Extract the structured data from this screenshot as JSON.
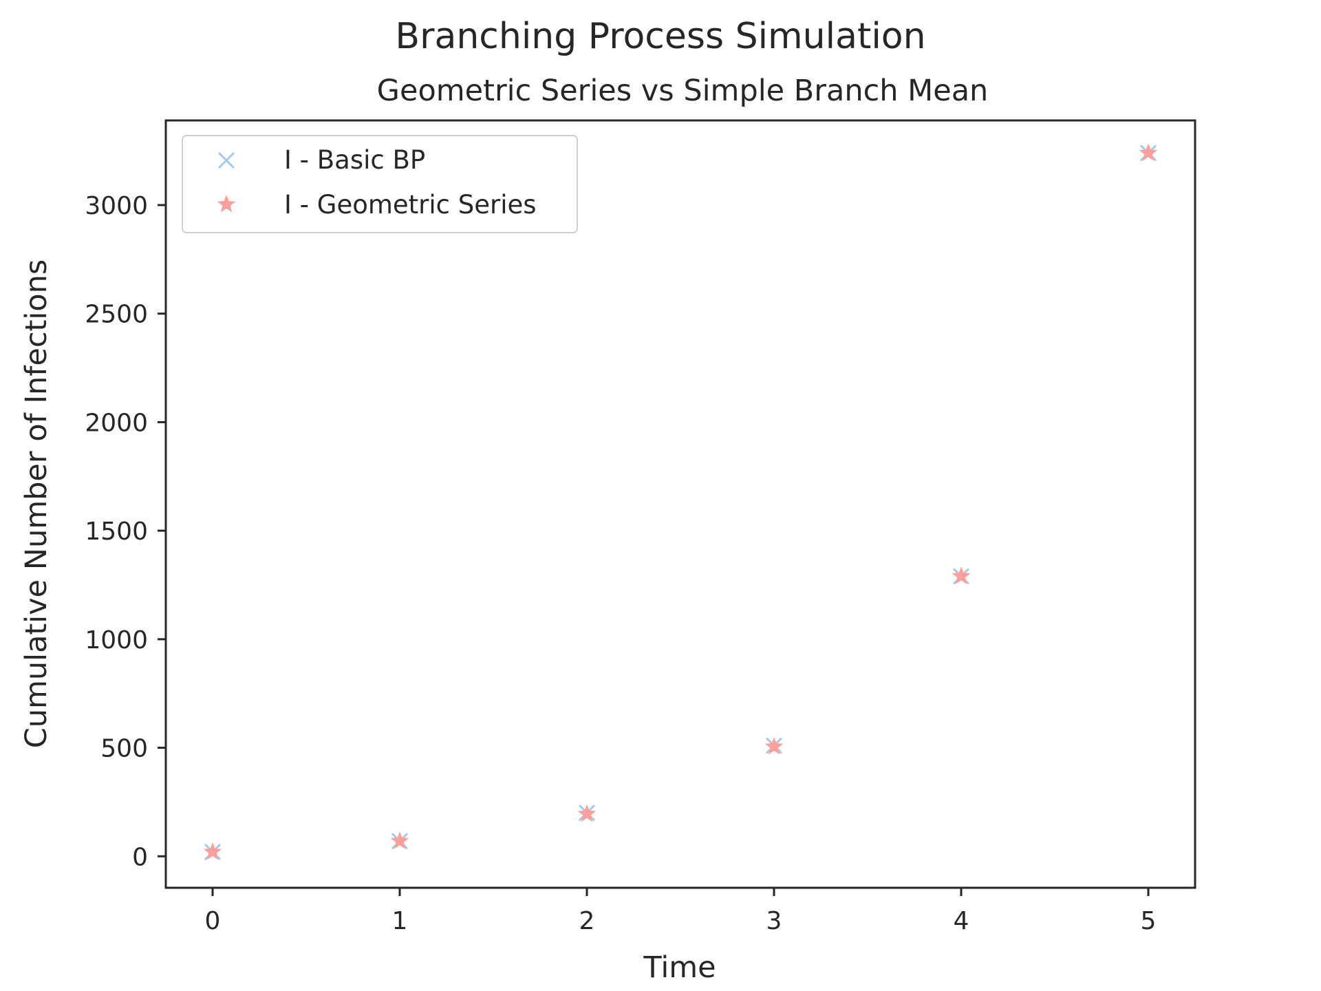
{
  "chart_data": {
    "type": "scatter",
    "title": "Branching Process Simulation",
    "subtitle": "Geometric Series vs Simple Branch Mean",
    "xlabel": "Time",
    "ylabel": "Cumulative Number of Infections",
    "xlim": [
      -0.25,
      5.25
    ],
    "ylim": [
      -145,
      3390
    ],
    "x_ticks": [
      0,
      1,
      2,
      3,
      4,
      5
    ],
    "y_ticks": [
      0,
      500,
      1000,
      1500,
      2000,
      2500,
      3000
    ],
    "grid": false,
    "legend_position": "upper-left",
    "series": [
      {
        "name": "I - Basic BP",
        "marker": "x",
        "color": "#a1c9f4",
        "x": [
          0,
          1,
          2,
          3,
          4,
          5
        ],
        "y": [
          20,
          70,
          200,
          510,
          1290,
          3240
        ]
      },
      {
        "name": "I - Geometric Series",
        "marker": "star",
        "color": "#ff9f9b",
        "x": [
          0,
          1,
          2,
          3,
          4,
          5
        ],
        "y": [
          20,
          70,
          195,
          505,
          1290,
          3240
        ]
      }
    ]
  }
}
